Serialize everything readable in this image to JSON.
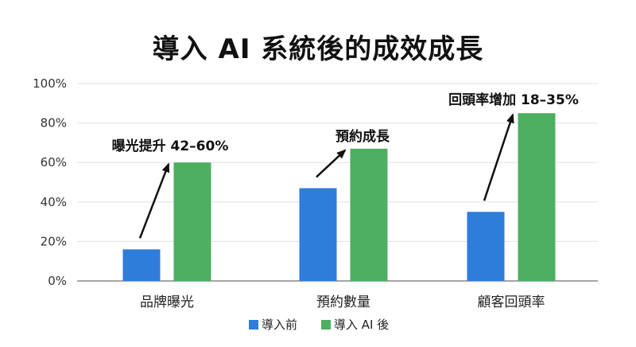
{
  "chart_data": {
    "type": "bar",
    "title": "導入 AI 系統後的成效成長",
    "categories": [
      "品牌曝光",
      "預約數量",
      "顧客回頭率"
    ],
    "series": [
      {
        "name": "導入前",
        "values": [
          16,
          47,
          35
        ],
        "color": "#2f7ddb"
      },
      {
        "name": "導入 AI 後",
        "values": [
          60,
          67,
          85
        ],
        "color": "#4daf60"
      }
    ],
    "ylim": [
      0,
      100
    ],
    "y_ticks": [
      "0%",
      "20%",
      "40%",
      "60%",
      "80%",
      "100%"
    ],
    "y_tick_values": [
      0,
      20,
      40,
      60,
      80,
      100
    ],
    "grid": true,
    "legend": "bottom",
    "annotations": [
      {
        "category_index": 0,
        "text": "曝光提升 42–60%"
      },
      {
        "category_index": 1,
        "text": "預約成長"
      },
      {
        "category_index": 2,
        "text": "回頭率增加 18–35%"
      }
    ],
    "arrow_color": "#111111",
    "gridline_color": "#e2e2e2",
    "axis_color": "#888888"
  }
}
